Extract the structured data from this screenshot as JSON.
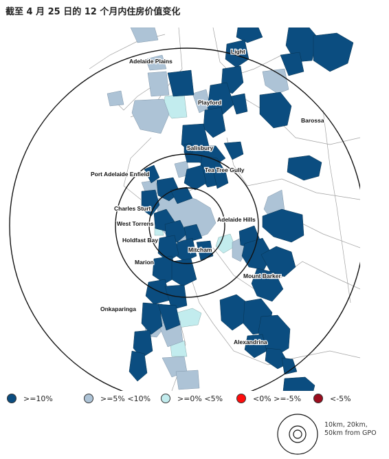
{
  "title": "截至 4 月 25 日的 12 个月内住房价值变化",
  "colors": {
    "dark_blue": "#0b4d80",
    "light_blue": "#adc3d6",
    "pale_cyan": "#c2ecee",
    "red": "#ff0d0d",
    "dark_red": "#9b0d1e",
    "boundary": "#a0a0a0",
    "ring": "#111111"
  },
  "legend": [
    {
      "label": ">=10%",
      "color": "#0b4d80"
    },
    {
      "label": ">=5% <10%",
      "color": "#adc3d6"
    },
    {
      "label": ">=0% <5%",
      "color": "#c2ecee"
    },
    {
      "label": "<0% >=-5%",
      "color": "#ff0d0d"
    },
    {
      "label": "<-5%",
      "color": "#9b0d1e"
    }
  ],
  "regions": [
    "Light",
    "Adelaide Plains",
    "Playford",
    "Barossa",
    "Salisbury",
    "Tea Tree Gully",
    "Port Adelaide Enfield",
    "Charles Sturt",
    "West Torrens",
    "Adelaide Hills",
    "Holdfast Bay",
    "Mitcham",
    "Marion",
    "Mount Barker",
    "Onkaparinga",
    "Alexandrina"
  ],
  "ring_key": {
    "label": "10km, 20km, 50km from GPO",
    "ring_labels": [
      "10km",
      "20km",
      "50km"
    ]
  }
}
